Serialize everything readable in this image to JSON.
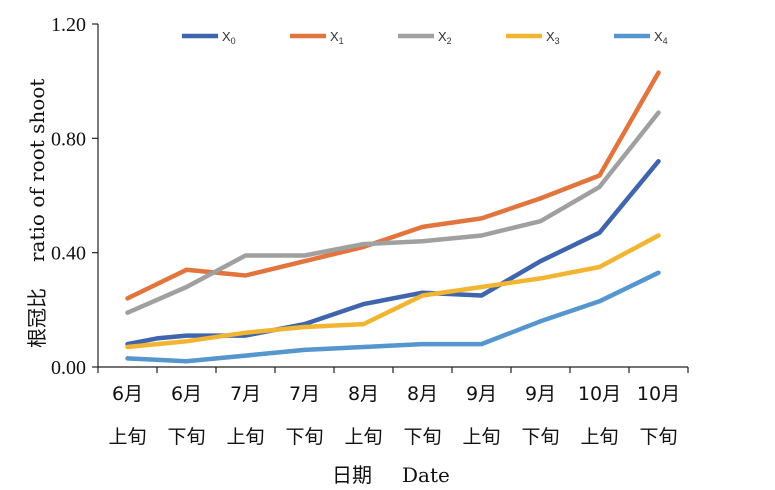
{
  "chart_data": {
    "type": "line",
    "title": "",
    "ylabel_cn": "根冠比",
    "ylabel_en": "ratio of root shoot",
    "xlabel_cn": "日期",
    "xlabel_en": "Date",
    "ylim": [
      0,
      1.2
    ],
    "yticks": [
      "0.00",
      "0.40",
      "0.80",
      "1.20"
    ],
    "grid": false,
    "legend_position": "top",
    "categories": [
      {
        "month": "6月",
        "period": "上旬"
      },
      {
        "month": "6月",
        "period": "下旬"
      },
      {
        "month": "7月",
        "period": "上旬"
      },
      {
        "month": "7月",
        "period": "下旬"
      },
      {
        "month": "8月",
        "period": "上旬"
      },
      {
        "month": "8月",
        "period": "下旬"
      },
      {
        "month": "9月",
        "period": "上旬"
      },
      {
        "month": "9月",
        "period": "下旬"
      },
      {
        "month": "10月",
        "period": "上旬"
      },
      {
        "month": "10月",
        "period": "下旬"
      }
    ],
    "series": [
      {
        "name": "X",
        "sub": "0",
        "color": "#3f65ae",
        "points": [
          [
            0,
            0.08
          ],
          [
            0.5,
            0.1
          ],
          [
            1.0,
            0.11
          ],
          [
            2.0,
            0.11
          ],
          [
            3.0,
            0.15
          ],
          [
            4.0,
            0.22
          ],
          [
            5.0,
            0.26
          ],
          [
            6.0,
            0.25
          ],
          [
            7.0,
            0.37
          ],
          [
            8.0,
            0.47
          ],
          [
            9.0,
            0.72
          ]
        ]
      },
      {
        "name": "X",
        "sub": "1",
        "color": "#e2743d",
        "points": [
          [
            0,
            0.24
          ],
          [
            1.0,
            0.34
          ],
          [
            2.0,
            0.32
          ],
          [
            3.0,
            0.37
          ],
          [
            4.0,
            0.42
          ],
          [
            5.0,
            0.49
          ],
          [
            6.0,
            0.52
          ],
          [
            7.0,
            0.59
          ],
          [
            8.0,
            0.67
          ],
          [
            9.0,
            1.03
          ]
        ]
      },
      {
        "name": "X",
        "sub": "2",
        "color": "#a0a0a0",
        "points": [
          [
            0,
            0.19
          ],
          [
            1.0,
            0.28
          ],
          [
            2.0,
            0.39
          ],
          [
            3.0,
            0.39
          ],
          [
            4.0,
            0.43
          ],
          [
            5.0,
            0.44
          ],
          [
            6.0,
            0.46
          ],
          [
            7.0,
            0.51
          ],
          [
            8.0,
            0.63
          ],
          [
            9.0,
            0.89
          ]
        ]
      },
      {
        "name": "X",
        "sub": "3",
        "color": "#f2b532",
        "points": [
          [
            0,
            0.07
          ],
          [
            1.0,
            0.09
          ],
          [
            2.0,
            0.12
          ],
          [
            3.0,
            0.14
          ],
          [
            4.0,
            0.15
          ],
          [
            5.0,
            0.25
          ],
          [
            6.0,
            0.28
          ],
          [
            7.0,
            0.31
          ],
          [
            8.0,
            0.35
          ],
          [
            9.0,
            0.46
          ]
        ]
      },
      {
        "name": "X",
        "sub": "4",
        "color": "#5496cd",
        "points": [
          [
            0,
            0.03
          ],
          [
            1.0,
            0.02
          ],
          [
            2.0,
            0.04
          ],
          [
            3.0,
            0.06
          ],
          [
            4.0,
            0.07
          ],
          [
            5.0,
            0.08
          ],
          [
            6.0,
            0.08
          ],
          [
            7.0,
            0.16
          ],
          [
            8.0,
            0.23
          ],
          [
            9.0,
            0.33
          ]
        ]
      }
    ]
  }
}
